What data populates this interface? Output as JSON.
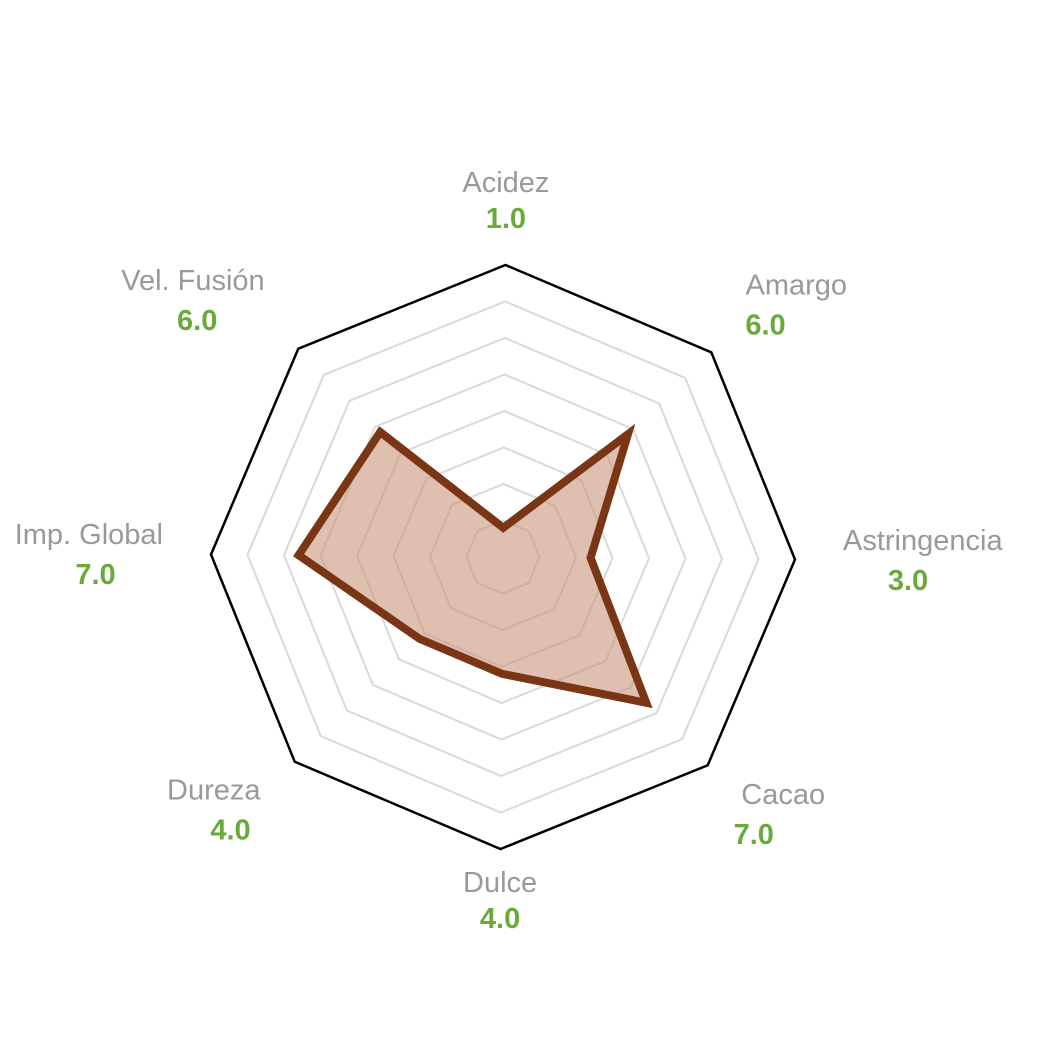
{
  "chart_data": {
    "type": "radar",
    "scale_max": 10,
    "rings": 7,
    "axes": [
      {
        "name": "Acidez",
        "value": 1.0,
        "value_label": "1.0"
      },
      {
        "name": "Amargo",
        "value": 6.0,
        "value_label": "6.0"
      },
      {
        "name": "Astringencia",
        "value": 3.0,
        "value_label": "3.0"
      },
      {
        "name": "Cacao",
        "value": 7.0,
        "value_label": "7.0"
      },
      {
        "name": "Dulce",
        "value": 4.0,
        "value_label": "4.0"
      },
      {
        "name": "Dureza",
        "value": 4.0,
        "value_label": "4.0"
      },
      {
        "name": "Imp. Global",
        "value": 7.0,
        "value_label": "7.0"
      },
      {
        "name": "Vel. Fusión",
        "value": 6.0,
        "value_label": "6.0"
      }
    ],
    "colors": {
      "outline": "#000000",
      "grid": "#d9d9d9",
      "series_stroke": "#7a3515",
      "series_fill": "#c9957a",
      "label": "#999999",
      "value": "#6aaa3a"
    }
  }
}
